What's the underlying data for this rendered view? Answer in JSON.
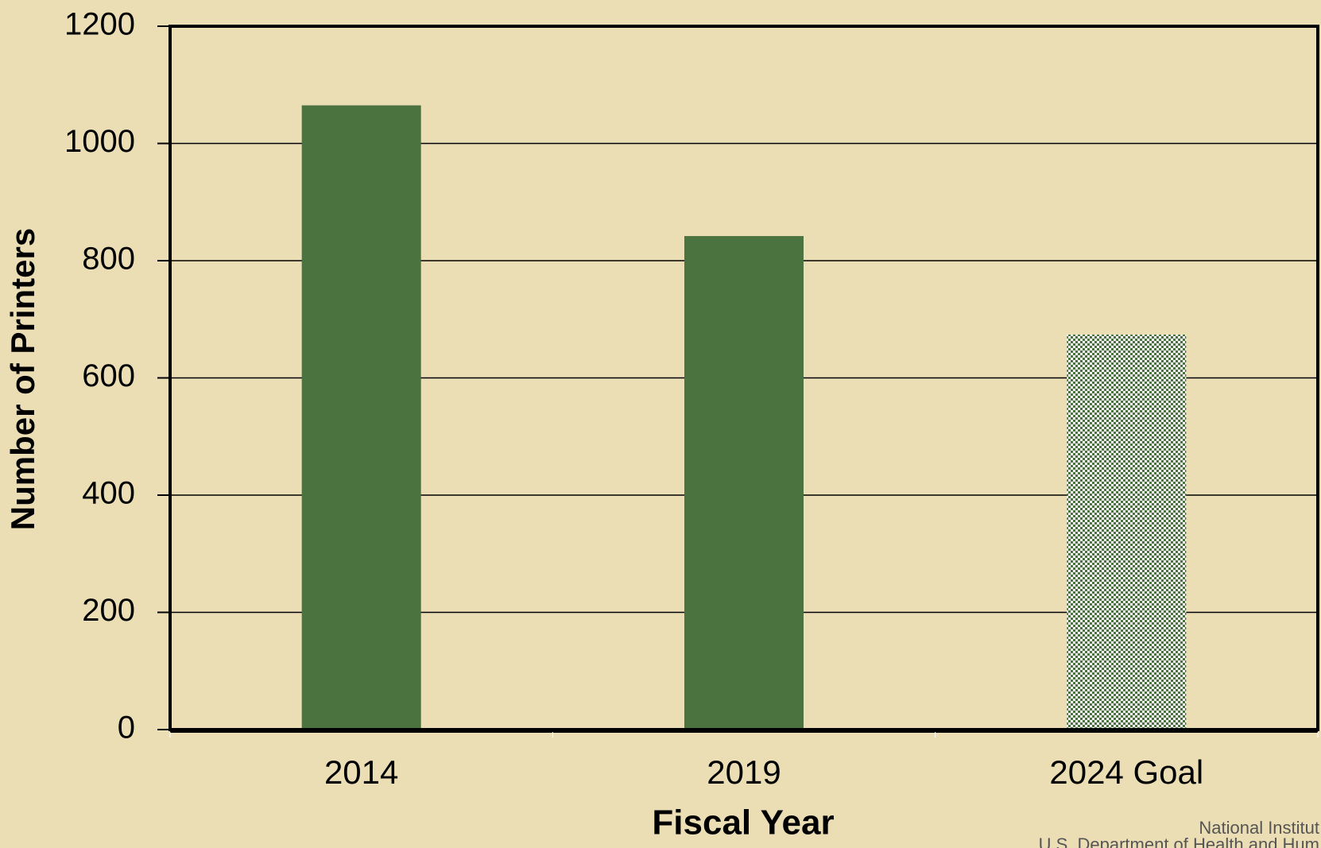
{
  "chart_data": {
    "type": "bar",
    "x_label": "Fiscal Year",
    "y_label": "Number of Printers",
    "categories": [
      "2014",
      "2019",
      "2024 Goal"
    ],
    "values": [
      1065,
      842,
      674
    ],
    "color": "#4a7340",
    "hatched": [
      false,
      false,
      true
    ],
    "ylim": [
      0,
      1200
    ],
    "yticks": [
      0,
      200,
      400,
      600,
      800,
      1000,
      1200
    ],
    "grid": true,
    "footer": [
      "National Institut",
      "U.S. Department of Health and Hum"
    ]
  }
}
